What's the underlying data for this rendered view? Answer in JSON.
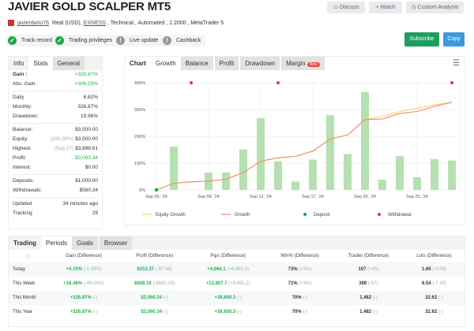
{
  "header": {
    "title": "JAVIER GOLD SCALPER MT5",
    "discuss": "Discuss",
    "watch": "+ Watch",
    "custom": "Custom Analysis",
    "user": "javierdario76",
    "meta_prefix": "Real (USD), ",
    "broker": "EXNESS",
    "meta_suffix": " , Technical , Automated , 1:2000 , MetaTrader 5",
    "badges": [
      {
        "label": "Track record",
        "ok": true
      },
      {
        "label": "Trading privileges",
        "ok": true
      },
      {
        "label": "Live update",
        "ok": false
      },
      {
        "label": "Cashback",
        "ok": false
      }
    ],
    "subscribe": "Subscribe",
    "copy": "Copy"
  },
  "stats": {
    "tabs": [
      "Info",
      "Stats",
      "General"
    ],
    "gain_label": "Gain :",
    "gain": "+326.87%",
    "abs_label": "Abs. Gain:",
    "abs": "+306.03%",
    "daily_label": "Daily",
    "daily": "6.82%",
    "monthly_label": "Monthly:",
    "monthly": "326.87%",
    "dd_label": "Drawdown:",
    "dd": "19.96%",
    "balance_label": "Balance:",
    "balance": "$3,500.00",
    "equity_label": "Equity:",
    "equity_pct": "(100.00%)",
    "equity": "$3,500.00",
    "highest_label": "Highest:",
    "highest_date": "(Sep 27)",
    "highest": "$3,898.61",
    "profit_label": "Profit:",
    "profit": "$3,060.34",
    "interest_label": "Interest:",
    "interest": "$0.00",
    "deposits_label": "Deposits:",
    "deposits": "$1,000.00",
    "withdrawals_label": "Withdrawals:",
    "withdrawals": "$560.34",
    "updated_label": "Updated",
    "updated": "34 minutes ago",
    "tracking_label": "Tracking",
    "tracking": "29"
  },
  "chart_tabs": {
    "label": "Chart",
    "tabs": [
      "Growth",
      "Balance",
      "Profit",
      "Drawdown",
      "Margin"
    ],
    "new_badge": "New"
  },
  "chart_data": {
    "type": "bar+line",
    "ylim": [
      0,
      400
    ],
    "yticks": [
      "0%",
      "100%",
      "200%",
      "300%",
      "400%"
    ],
    "xticks": [
      {
        "slot": 0,
        "label": "Sep 05, '24"
      },
      {
        "slot": 3,
        "label": "Sep 09, '24"
      },
      {
        "slot": 6,
        "label": "Sep 12, '24"
      },
      {
        "slot": 9,
        "label": "Sep 17, '24"
      },
      {
        "slot": 12,
        "label": "Sep 20, '24"
      },
      {
        "slot": 15,
        "label": "Sep 25, '24"
      }
    ],
    "bars": [
      null,
      162,
      null,
      65,
      65,
      151,
      268,
      107,
      31,
      113,
      279,
      134,
      365,
      38,
      126,
      47,
      115,
      110
    ],
    "series": [
      {
        "name": "Equity Growth",
        "color": "#f6d36b",
        "values": [
          0,
          25,
          30,
          33,
          40,
          65,
          107,
          120,
          125,
          145,
          190,
          205,
          262,
          275,
          292,
          305,
          318,
          327
        ]
      },
      {
        "name": "Growth",
        "color": "#f08a6c",
        "values": [
          0,
          25,
          30,
          33,
          40,
          65,
          107,
          120,
          125,
          145,
          190,
          205,
          262,
          265,
          285,
          293,
          312,
          327
        ]
      }
    ],
    "deposits": [
      {
        "slot": 0,
        "value": 0
      }
    ],
    "withdrawals": [
      2,
      7,
      17
    ],
    "legend": [
      "Equity Growth",
      "Growth",
      "Deposit",
      "Withdrawal"
    ],
    "grid": true,
    "bar_color": "#b5e0b0"
  },
  "periods": {
    "tabs": [
      "Trading",
      "Periods",
      "Goals",
      "Browser"
    ],
    "headers": [
      "Gain (Difference)",
      "Profit (Difference)",
      "Pips (Difference)",
      "Win% (Difference)",
      "Trades (Difference)",
      "Lots (Difference)"
    ],
    "rows": [
      {
        "label": "Today",
        "cells": [
          [
            "+4.10%",
            "(-0.39%)"
          ],
          [
            "$153.37",
            "(-$7.48)"
          ],
          [
            "+4,664.1",
            "(+6,880.3)"
          ],
          [
            "73%",
            "(+3%)"
          ],
          [
            "107",
            "(+45)"
          ],
          [
            "1.65",
            "(-0.08)"
          ]
        ]
      },
      {
        "label": "This Week",
        "cells": [
          [
            "+18.48%",
            "(-46.04%)"
          ],
          [
            "$608.16",
            "(-$682.29)"
          ],
          [
            "+13,957.7",
            "(+9,491.2)"
          ],
          [
            "71%",
            "(+3%)"
          ],
          [
            "389",
            "(-87)"
          ],
          [
            "6.54",
            "(-7.30)"
          ]
        ]
      },
      {
        "label": "This Month",
        "cells": [
          [
            "+326.87%",
            "(-)"
          ],
          [
            "$3,060.34",
            "(-)"
          ],
          [
            "+38,600.3",
            "(-)"
          ],
          [
            "70%",
            "(-)"
          ],
          [
            "1,482",
            "(-)"
          ],
          [
            "32.62",
            "(-)"
          ]
        ]
      },
      {
        "label": "This Year",
        "cells": [
          [
            "+326.87%",
            "(-)"
          ],
          [
            "$3,060.34",
            "(-)"
          ],
          [
            "+38,600.3",
            "(-)"
          ],
          [
            "70%",
            "(-)"
          ],
          [
            "1,482",
            "(-)"
          ],
          [
            "32.62",
            "(-)"
          ]
        ]
      }
    ]
  }
}
